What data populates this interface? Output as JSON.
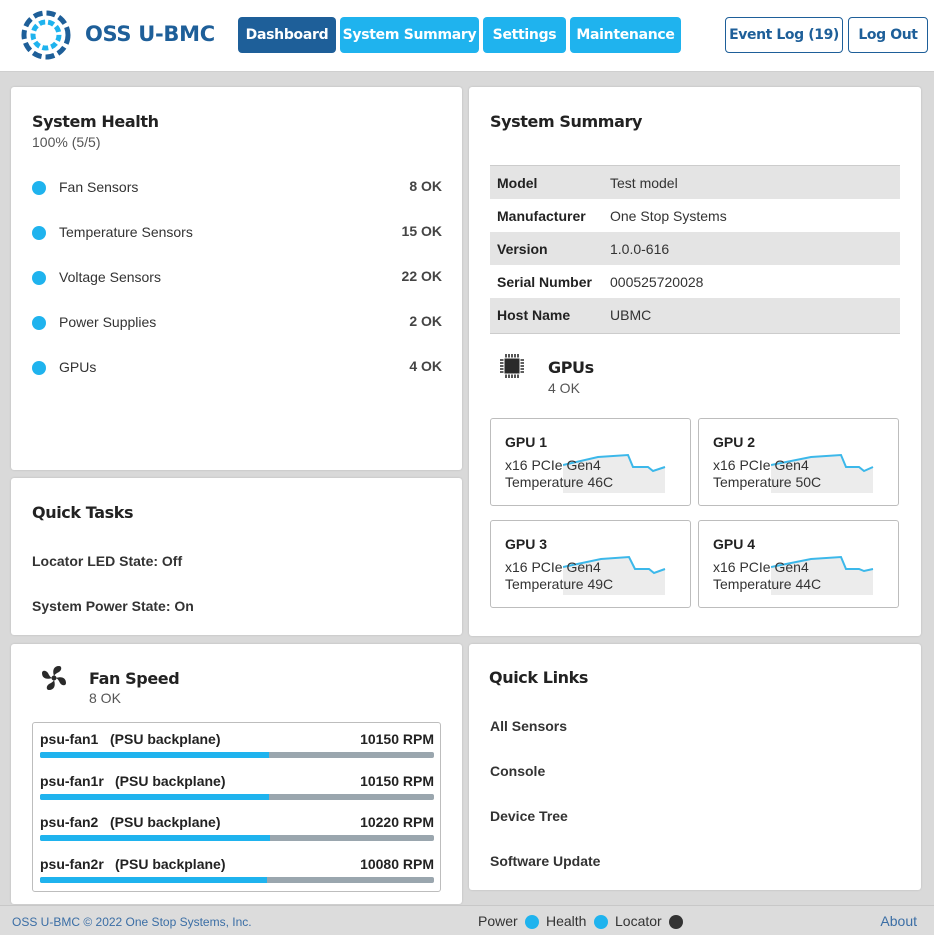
{
  "header": {
    "brand": "OSS U-BMC",
    "nav": [
      {
        "label": "Dashboard",
        "active": true
      },
      {
        "label": "System Summary",
        "active": false
      },
      {
        "label": "Settings",
        "active": false
      },
      {
        "label": "Maintenance",
        "active": false
      }
    ],
    "event_log": "Event Log (19)",
    "logout": "Log Out"
  },
  "colors": {
    "primary": "#1e5f99",
    "accent": "#1fb3ee",
    "locator_off": "#333333"
  },
  "health": {
    "title": "System Health",
    "summary": "100% (5/5)",
    "items": [
      {
        "label": "Fan Sensors",
        "value": "8 OK"
      },
      {
        "label": "Temperature Sensors",
        "value": "15 OK"
      },
      {
        "label": "Voltage Sensors",
        "value": "22 OK"
      },
      {
        "label": "Power Supplies",
        "value": "2 OK"
      },
      {
        "label": "GPUs",
        "value": "4 OK"
      }
    ]
  },
  "quick_tasks": {
    "title": "Quick Tasks",
    "locator": "Locator LED State: Off",
    "power": "System Power State: On"
  },
  "summary": {
    "title": "System Summary",
    "rows": [
      {
        "key": "Model",
        "value": "Test model"
      },
      {
        "key": "Manufacturer",
        "value": "One Stop Systems"
      },
      {
        "key": "Version",
        "value": "1.0.0-616"
      },
      {
        "key": "Serial Number",
        "value": "000525720028"
      },
      {
        "key": "Host Name",
        "value": "UBMC"
      }
    ]
  },
  "gpus": {
    "title": "GPUs",
    "status": "4 OK",
    "icon": "gpu-chip-icon",
    "cards": [
      {
        "name": "GPU 1",
        "link": "x16 PCIe Gen4",
        "temp": "Temperature 46C"
      },
      {
        "name": "GPU 2",
        "link": "x16 PCIe Gen4",
        "temp": "Temperature 50C"
      },
      {
        "name": "GPU 3",
        "link": "x16 PCIe Gen4",
        "temp": "Temperature 49C"
      },
      {
        "name": "GPU 4",
        "link": "x16 PCIe Gen4",
        "temp": "Temperature 44C"
      }
    ]
  },
  "fans": {
    "title": "Fan Speed",
    "status": "8 OK",
    "icon": "fan-icon",
    "rows": [
      {
        "name": "psu-fan1",
        "location": "(PSU backplane)",
        "rpm": "10150 RPM",
        "level": 0.58
      },
      {
        "name": "psu-fan1r",
        "location": "(PSU backplane)",
        "rpm": "10150 RPM",
        "level": 0.58
      },
      {
        "name": "psu-fan2",
        "location": "(PSU backplane)",
        "rpm": "10220 RPM",
        "level": 0.585
      },
      {
        "name": "psu-fan2r",
        "location": "(PSU backplane)",
        "rpm": "10080 RPM",
        "level": 0.575
      }
    ]
  },
  "quick_links": {
    "title": "Quick Links",
    "items": [
      "All Sensors",
      "Console",
      "Device Tree",
      "Software Update"
    ]
  },
  "footer": {
    "copyright": "OSS U-BMC © 2022 One Stop Systems, Inc.",
    "power": "Power",
    "health": "Health",
    "locator": "Locator",
    "about": "About"
  }
}
